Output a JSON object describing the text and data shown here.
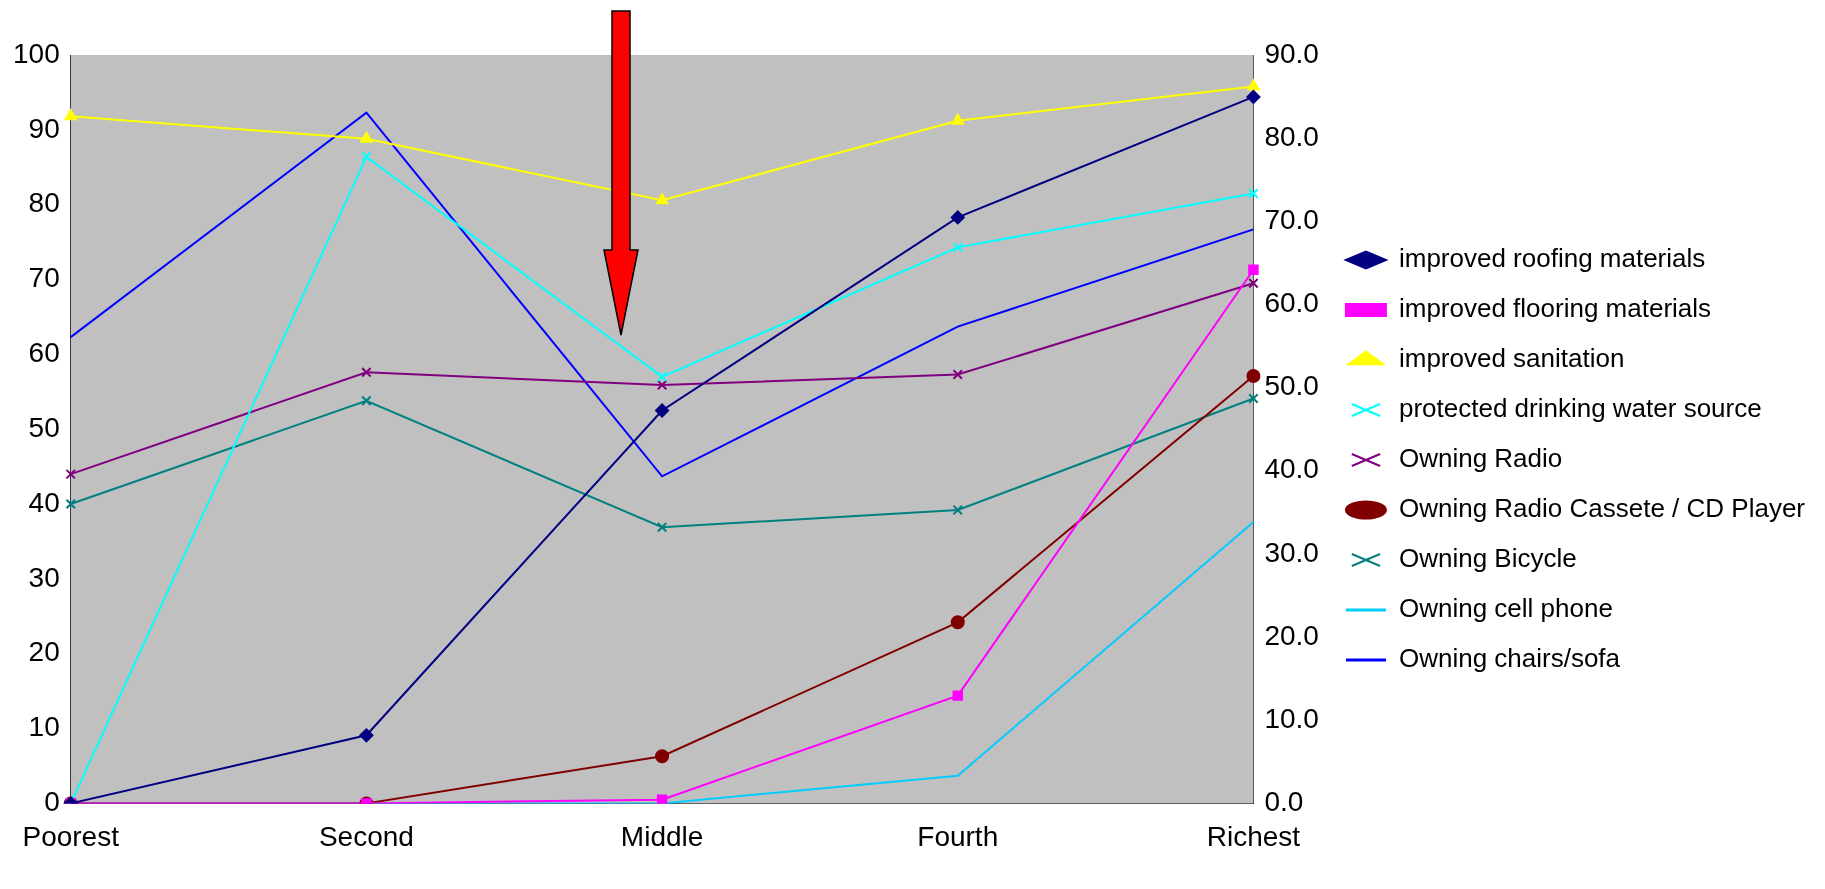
{
  "chart_data": {
    "type": "line",
    "categories": [
      "Poorest",
      "Second",
      "Middle",
      "Fourth",
      "Richest"
    ],
    "series": [
      {
        "name": "improved roofing materials",
        "color": "#000080",
        "marker": "diamond",
        "values": [
          0,
          9.1,
          52.5,
          78.3,
          94.4
        ]
      },
      {
        "name": "improved flooring materials",
        "color": "#ff00ff",
        "marker": "square",
        "values": [
          0,
          0,
          0.5,
          14.4,
          71.3
        ]
      },
      {
        "name": "improved sanitation",
        "color": "#ffff00",
        "marker": "triangle",
        "values": [
          91.8,
          88.8,
          80.6,
          91.2,
          95.8
        ]
      },
      {
        "name": "protected drinking water source",
        "color": "#00ffff",
        "marker": "cross",
        "values": [
          0,
          86.4,
          57,
          74.3,
          81.5
        ]
      },
      {
        "name": "Owning Radio",
        "color": "#800080",
        "marker": "cross",
        "values": [
          44,
          57.6,
          55.9,
          57.3,
          69.5
        ]
      },
      {
        "name": "Owning Radio Cassete / CD Player",
        "color": "#800000",
        "marker": "circle",
        "values": [
          0,
          0,
          6.3,
          24.2,
          57.1
        ]
      },
      {
        "name": "Owning Bicycle",
        "color": "#008080",
        "marker": "cross",
        "values": [
          40,
          53.8,
          36.9,
          39.2,
          54.1
        ]
      },
      {
        "name": "Owning cell phone",
        "color": "#00ccff",
        "marker": "none",
        "values": [
          0,
          0,
          0,
          3.7,
          37.6
        ]
      },
      {
        "name": "Owning chairs/sofa",
        "color": "#0000ff",
        "marker": "none",
        "values": [
          62.3,
          92.3,
          43.7,
          63.7,
          76.7
        ]
      }
    ],
    "ylim": [
      0,
      100
    ],
    "yticks": [
      0,
      10,
      20,
      30,
      40,
      50,
      60,
      70,
      80,
      90,
      100
    ],
    "y2lim": [
      0,
      90
    ],
    "y2ticks": [
      {
        "value": 0,
        "label": "0.0"
      },
      {
        "value": 10,
        "label": "10.0"
      },
      {
        "value": 20,
        "label": "20.0"
      },
      {
        "value": 30,
        "label": "30.0"
      },
      {
        "value": 40,
        "label": "40.0"
      },
      {
        "value": 50,
        "label": "50.0"
      },
      {
        "value": 60,
        "label": "60.0"
      },
      {
        "value": 70,
        "label": "70.0"
      },
      {
        "value": 80,
        "label": "80.0"
      },
      {
        "value": 90,
        "label": "90.0"
      }
    ],
    "grid": false,
    "legend": "right"
  }
}
